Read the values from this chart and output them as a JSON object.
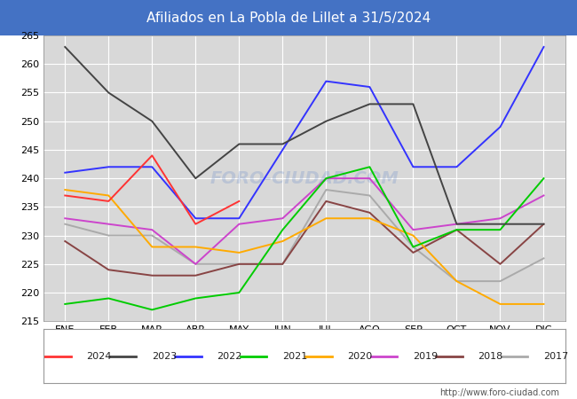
{
  "title": "Afiliados en La Pobla de Lillet a 31/5/2024",
  "header_color": "#4472c4",
  "plot_bg_color": "#d8d8d8",
  "grid_color": "#ffffff",
  "ylim": [
    215,
    265
  ],
  "yticks": [
    215,
    220,
    225,
    230,
    235,
    240,
    245,
    250,
    255,
    260,
    265
  ],
  "months": [
    "ENE",
    "FEB",
    "MAR",
    "ABR",
    "MAY",
    "JUN",
    "JUL",
    "AGO",
    "SEP",
    "OCT",
    "NOV",
    "DIC"
  ],
  "watermark": "FORO-CIUDAD.COM",
  "url": "http://www.foro-ciudad.com",
  "series": {
    "2024": {
      "color": "#ff3333",
      "data": [
        237,
        236,
        244,
        232,
        236,
        null,
        null,
        null,
        null,
        null,
        null,
        null
      ]
    },
    "2023": {
      "color": "#444444",
      "data": [
        263,
        255,
        250,
        240,
        246,
        246,
        250,
        253,
        253,
        232,
        232,
        232
      ]
    },
    "2022": {
      "color": "#3333ff",
      "data": [
        241,
        242,
        242,
        233,
        233,
        245,
        257,
        256,
        242,
        242,
        249,
        263
      ]
    },
    "2021": {
      "color": "#00cc00",
      "data": [
        218,
        219,
        217,
        219,
        220,
        231,
        240,
        242,
        228,
        231,
        231,
        240
      ]
    },
    "2020": {
      "color": "#ffaa00",
      "data": [
        238,
        237,
        228,
        228,
        227,
        229,
        233,
        233,
        230,
        222,
        218,
        218
      ]
    },
    "2019": {
      "color": "#cc44cc",
      "data": [
        233,
        232,
        231,
        225,
        232,
        233,
        240,
        240,
        231,
        232,
        233,
        237
      ]
    },
    "2018": {
      "color": "#884444",
      "data": [
        229,
        224,
        223,
        223,
        225,
        225,
        236,
        234,
        227,
        231,
        225,
        232
      ]
    },
    "2017": {
      "color": "#aaaaaa",
      "data": [
        232,
        230,
        230,
        225,
        225,
        225,
        238,
        237,
        228,
        222,
        222,
        226
      ]
    }
  }
}
